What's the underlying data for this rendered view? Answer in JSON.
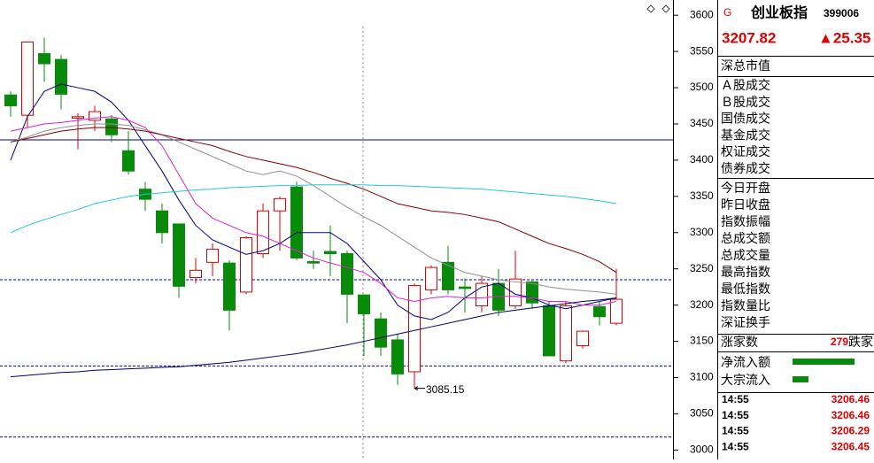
{
  "chart_data": {
    "type": "candlestick",
    "ylim": [
      2987,
      3621
    ],
    "yticks": [
      3000,
      3050,
      3100,
      3150,
      3200,
      3250,
      3300,
      3350,
      3400,
      3450,
      3500,
      3550,
      3600
    ],
    "up_color": "#e00000",
    "down_color": "#0a8a0a",
    "open": [
      3490,
      3462,
      3547,
      3539,
      3458,
      3455,
      3457,
      3413,
      3360,
      3330,
      3312,
      3238,
      3259,
      3258,
      3218,
      3271,
      3330,
      3363,
      3260,
      3274,
      3271,
      3214,
      3181,
      3152,
      3108,
      3221,
      3259,
      3225,
      3199,
      3230,
      3199,
      3232,
      3199,
      3123,
      3144,
      3198,
      3175
    ],
    "high": [
      3495,
      3563,
      3569,
      3545,
      3465,
      3475,
      3462,
      3440,
      3370,
      3340,
      3312,
      3265,
      3285,
      3262,
      3295,
      3340,
      3350,
      3370,
      3275,
      3310,
      3275,
      3215,
      3190,
      3160,
      3230,
      3255,
      3282,
      3237,
      3240,
      3250,
      3275,
      3235,
      3205,
      3205,
      3165,
      3205,
      3250
    ],
    "low": [
      3460,
      3445,
      3508,
      3470,
      3415,
      3440,
      3425,
      3380,
      3330,
      3285,
      3210,
      3230,
      3240,
      3165,
      3215,
      3265,
      3275,
      3262,
      3250,
      3240,
      3175,
      3130,
      3130,
      3090,
      3085.15,
      3215,
      3215,
      3190,
      3190,
      3185,
      3195,
      3195,
      3130,
      3120,
      3140,
      3172,
      3172
    ],
    "close": [
      3475,
      3563,
      3533,
      3491,
      3460,
      3467,
      3435,
      3385,
      3346,
      3300,
      3226,
      3248,
      3277,
      3193,
      3293,
      3330,
      3347,
      3265,
      3258,
      3271,
      3215,
      3188,
      3142,
      3105,
      3227,
      3252,
      3221,
      3223,
      3230,
      3193,
      3236,
      3203,
      3130,
      3199,
      3164,
      3184,
      3208
    ],
    "lines": [
      {
        "color": "#000080",
        "values": [
          3400,
          3460,
          3495,
          3505,
          3500,
          3495,
          3480,
          3455,
          3420,
          3385,
          3345,
          3310,
          3290,
          3280,
          3270,
          3275,
          3285,
          3300,
          3300,
          3300,
          3285,
          3260,
          3235,
          3200,
          3185,
          3180,
          3190,
          3210,
          3225,
          3230,
          3215,
          3210,
          3200,
          3195,
          3200,
          3205,
          3210
        ]
      },
      {
        "color": "#e020d0",
        "values": [
          3440,
          3445,
          3450,
          3452,
          3455,
          3458,
          3460,
          3455,
          3445,
          3420,
          3380,
          3340,
          3320,
          3310,
          3300,
          3295,
          3285,
          3275,
          3265,
          3258,
          3252,
          3245,
          3230,
          3210,
          3205,
          3210,
          3212,
          3210,
          3210,
          3212,
          3212,
          3210,
          3205,
          3205,
          3200,
          3200,
          3205
        ]
      },
      {
        "color": "#909090",
        "values": [
          3425,
          3432,
          3440,
          3445,
          3448,
          3450,
          3450,
          3448,
          3442,
          3435,
          3425,
          3415,
          3405,
          3395,
          3385,
          3380,
          3385,
          3378,
          3365,
          3350,
          3335,
          3322,
          3310,
          3295,
          3280,
          3265,
          3255,
          3245,
          3240,
          3235,
          3232,
          3230,
          3225,
          3222,
          3220,
          3218,
          3215
        ]
      },
      {
        "color": "#800000",
        "values": [
          3425,
          3430,
          3435,
          3440,
          3443,
          3445,
          3445,
          3443,
          3440,
          3435,
          3430,
          3425,
          3420,
          3412,
          3405,
          3400,
          3395,
          3390,
          3383,
          3375,
          3368,
          3360,
          3350,
          3340,
          3335,
          3330,
          3328,
          3325,
          3320,
          3315,
          3305,
          3295,
          3285,
          3278,
          3270,
          3260,
          3245
        ]
      },
      {
        "color": "#20c8e0",
        "values": [
          3300,
          3310,
          3318,
          3325,
          3332,
          3340,
          3345,
          3350,
          3353,
          3355,
          3357,
          3359,
          3360,
          3362,
          3363,
          3364,
          3365,
          3365,
          3366,
          3366,
          3366,
          3366,
          3365,
          3365,
          3364,
          3363,
          3362,
          3361,
          3360,
          3358,
          3356,
          3354,
          3352,
          3350,
          3347,
          3344,
          3340
        ]
      },
      {
        "color": "#000060",
        "values": [
          3101,
          3103,
          3105,
          3107,
          3108,
          3110,
          3111,
          3112,
          3113,
          3114,
          3115,
          3117,
          3119,
          3121,
          3124,
          3127,
          3130,
          3133,
          3137,
          3141,
          3145,
          3150,
          3155,
          3160,
          3165,
          3170,
          3175,
          3180,
          3185,
          3190,
          3193,
          3196,
          3199,
          3202,
          3205,
          3207,
          3210
        ]
      }
    ],
    "hlines": [
      {
        "value": 3428,
        "color": "#000080",
        "dashed": false
      },
      {
        "value": 3235,
        "color": "#0000c0",
        "dashed": true
      },
      {
        "value": 3116,
        "color": "#0000c0",
        "dashed": true
      },
      {
        "value": 3018,
        "color": "#0000c0",
        "dashed": true
      }
    ],
    "annotation": {
      "index": 24,
      "label": "3085.15"
    }
  },
  "panel": {
    "flag": "G",
    "name": "创业板指",
    "code": "399006",
    "price": "3207.82",
    "change": "▲25.35",
    "market_value": "深总市值",
    "group1": [
      "Ａ股成交",
      "Ｂ股成交",
      "国债成交",
      "基金成交",
      "权证成交",
      "债券成交"
    ],
    "group2": [
      "今日开盘",
      "昨日收盘",
      "指数振幅",
      "总成交额",
      "总成交量",
      "最高指数",
      "最低指数",
      "指数量比",
      "深证换手"
    ],
    "advance_label": "涨家数",
    "advance": "279",
    "decline_label": "跌家",
    "flow": [
      "净流入额",
      "大宗流入"
    ],
    "ticks": [
      [
        "14:55",
        "3206.46"
      ],
      [
        "14:55",
        "3206.46"
      ],
      [
        "14:55",
        "3206.29"
      ],
      [
        "14:55",
        "3206.45"
      ]
    ]
  }
}
